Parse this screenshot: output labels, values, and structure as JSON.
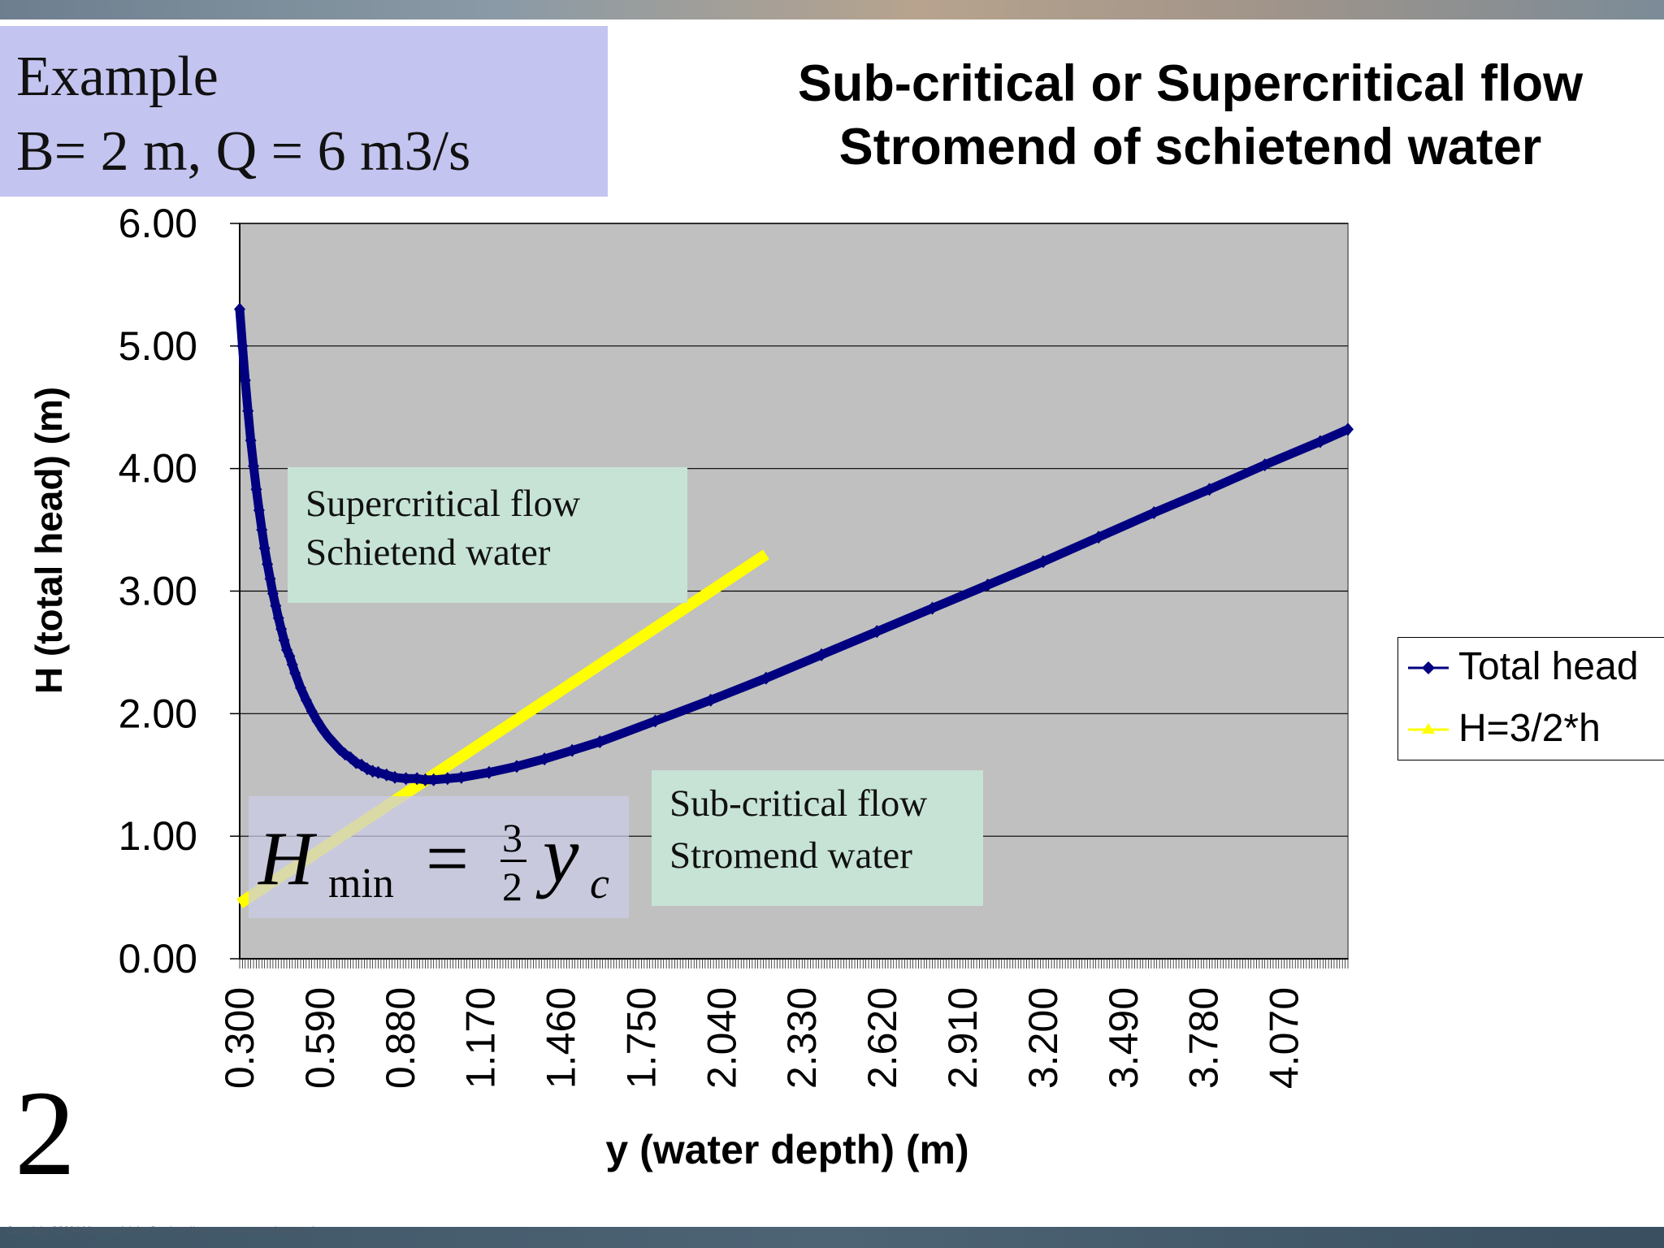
{
  "example": {
    "line1": "Example",
    "line2": "B= 2 m, Q = 6 m3/s"
  },
  "title": {
    "line1": "Sub-critical or Supercritical flow",
    "line2": "Stromend of schietend water"
  },
  "annotations": {
    "supercritical_line1": "Supercritical flow",
    "supercritical_line2": "Schietend water",
    "subcritical_line1": "Sub-critical flow",
    "subcritical_line2": "Stromend water"
  },
  "formula": {
    "H": "H",
    "sub": "min",
    "equals": "=",
    "numerator": "3",
    "denominator": "2",
    "y": "y",
    "ysub": "c"
  },
  "slide_number": "2",
  "copyright": "Copyright ©2004 Mayang Adnin.  See http://www.mayang.com/textures/",
  "colors": {
    "total_head": "#000080",
    "hmin_line": "#ffff00",
    "plot_background": "#c0c0c0",
    "example_box": "#c4c4f0",
    "annotation_box": "#c6e3d6"
  },
  "chart_data": {
    "type": "line",
    "title": "",
    "xlabel": "y  (water depth) (m)",
    "ylabel": "H (total head) (m)",
    "xlim": [
      0.3,
      4.3
    ],
    "ylim": [
      0,
      6
    ],
    "x_tick_labels": [
      "0.300",
      "0.590",
      "0.880",
      "1.170",
      "1.460",
      "1.750",
      "2.040",
      "2.330",
      "2.620",
      "2.910",
      "3.200",
      "3.490",
      "3.780",
      "4.070"
    ],
    "y_tick_labels": [
      "0.00",
      "1.00",
      "2.00",
      "3.00",
      "4.00",
      "5.00",
      "6.00"
    ],
    "grid": "horizontal",
    "legend_position": "right",
    "series": [
      {
        "name": "Total head",
        "x": [
          0.3,
          0.31,
          0.32,
          0.33,
          0.34,
          0.35,
          0.36,
          0.37,
          0.38,
          0.39,
          0.4,
          0.41,
          0.42,
          0.43,
          0.44,
          0.45,
          0.46,
          0.47,
          0.48,
          0.49,
          0.5,
          0.52,
          0.54,
          0.56,
          0.58,
          0.6,
          0.62,
          0.64,
          0.66,
          0.68,
          0.7,
          0.72,
          0.74,
          0.76,
          0.78,
          0.8,
          0.83,
          0.86,
          0.9,
          0.94,
          0.97,
          1.0,
          1.05,
          1.1,
          1.2,
          1.3,
          1.4,
          1.5,
          1.6,
          1.8,
          2.0,
          2.2,
          2.4,
          2.6,
          2.8,
          3.0,
          3.2,
          3.4,
          3.6,
          3.8,
          4.0,
          4.2,
          4.3
        ],
        "values": [
          5.3,
          5.0,
          4.72,
          4.47,
          4.23,
          4.02,
          3.83,
          3.66,
          3.5,
          3.35,
          3.22,
          3.1,
          2.98,
          2.88,
          2.78,
          2.69,
          2.6,
          2.52,
          2.47,
          2.4,
          2.33,
          2.21,
          2.11,
          2.02,
          1.94,
          1.87,
          1.81,
          1.76,
          1.71,
          1.67,
          1.64,
          1.6,
          1.58,
          1.55,
          1.53,
          1.52,
          1.5,
          1.48,
          1.47,
          1.47,
          1.46,
          1.46,
          1.47,
          1.48,
          1.52,
          1.57,
          1.63,
          1.7,
          1.77,
          1.94,
          2.11,
          2.29,
          2.48,
          2.67,
          2.86,
          3.05,
          3.24,
          3.44,
          3.64,
          3.83,
          4.03,
          4.22,
          4.32
        ]
      },
      {
        "name": "H=3/2*h",
        "x": [
          0.3,
          2.2
        ],
        "values": [
          0.45,
          3.3
        ]
      }
    ]
  }
}
